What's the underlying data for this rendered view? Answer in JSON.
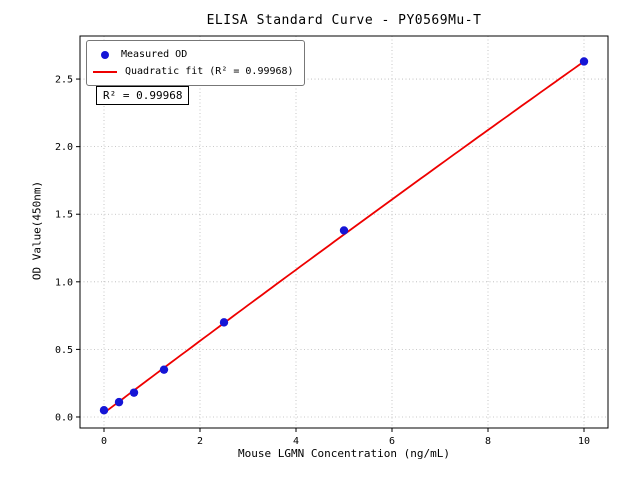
{
  "chart_data": {
    "type": "scatter",
    "title": "ELISA Standard Curve - PY0569Mu-T",
    "xlabel": "Mouse LGMN Concentration (ng/mL)",
    "ylabel": "OD Value(450nm)",
    "xlim": [
      -0.5,
      10.5
    ],
    "ylim": [
      -0.0815,
      2.8185
    ],
    "xticks": [
      0,
      2,
      4,
      6,
      8,
      10
    ],
    "yticks": [
      0.0,
      0.5,
      1.0,
      1.5,
      2.0,
      2.5
    ],
    "grid": true,
    "annotation": "R² = 0.99968",
    "legend": {
      "position": "upper-left",
      "entries": [
        {
          "label": "Measured OD",
          "marker": "dot",
          "color": "#1515d6"
        },
        {
          "label": "Quadratic fit (R² = 0.99968)",
          "marker": "line",
          "color": "#ee0000"
        }
      ]
    },
    "series": [
      {
        "name": "Measured OD",
        "type": "scatter",
        "color": "#1515d6",
        "points": [
          [
            0,
            0.05
          ],
          [
            0.313,
            0.11
          ],
          [
            0.625,
            0.18
          ],
          [
            1.25,
            0.35
          ],
          [
            2.5,
            0.7
          ],
          [
            5,
            1.38
          ],
          [
            10,
            2.63
          ]
        ]
      },
      {
        "name": "Quadratic fit",
        "type": "fit",
        "color": "#ee0000",
        "coeffs": {
          "a": -0.0008,
          "b": 0.268,
          "c": 0.03
        },
        "x_range": [
          0,
          10
        ],
        "r_squared": 0.99968
      }
    ]
  }
}
